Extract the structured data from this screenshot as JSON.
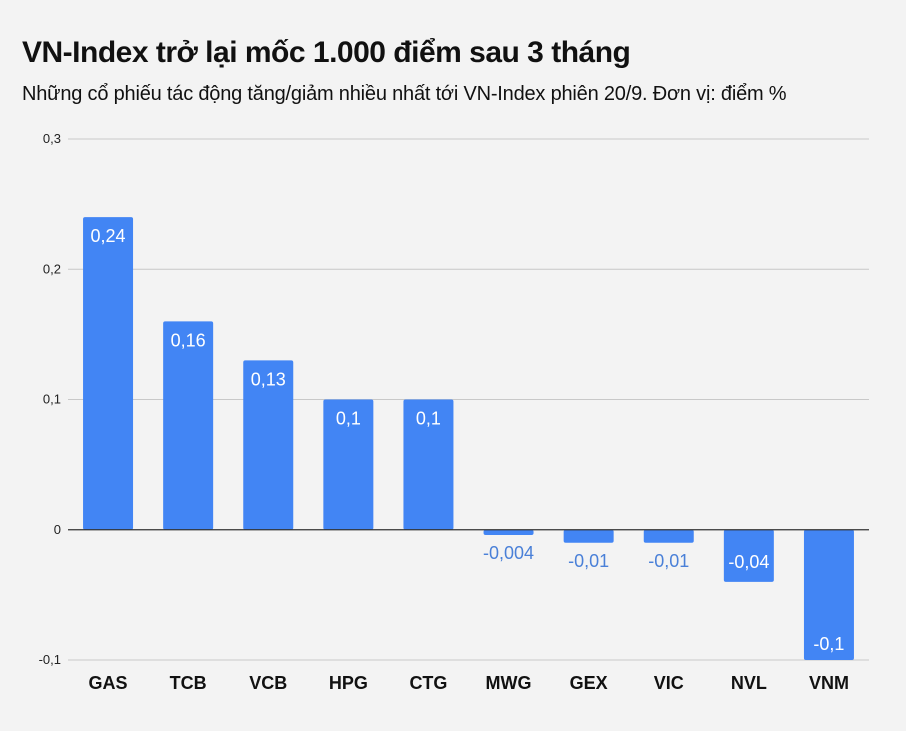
{
  "header": {
    "title": "VN-Index trở lại mốc 1.000 điểm sau 3 tháng",
    "subtitle": "Những cổ phiếu tác động tăng/giảm nhiều nhất tới VN-Index phiên 20/9. Đơn vị: điểm %"
  },
  "colors": {
    "bar": "#4285f4",
    "background": "#f3f3f3",
    "gridline": "#c8c8c8",
    "zero_line": "#333333",
    "label_inside": "#ffffff",
    "label_outside": "#4a80d8"
  },
  "chart_data": {
    "type": "bar",
    "title": "VN-Index trở lại mốc 1.000 điểm sau 3 tháng",
    "subtitle": "Những cổ phiếu tác động tăng/giảm nhiều nhất tới VN-Index phiên 20/9. Đơn vị: điểm %",
    "categories": [
      "GAS",
      "TCB",
      "VCB",
      "HPG",
      "CTG",
      "MWG",
      "GEX",
      "VIC",
      "NVL",
      "VNM"
    ],
    "values": [
      0.24,
      0.16,
      0.13,
      0.1,
      0.1,
      -0.004,
      -0.01,
      -0.01,
      -0.04,
      -0.1
    ],
    "value_labels": [
      "0,24",
      "0,16",
      "0,13",
      "0,1",
      "0,1",
      "-0,004",
      "-0,01",
      "-0,01",
      "-0,04",
      "-0,1"
    ],
    "xlabel": "",
    "ylabel": "",
    "ylim": [
      -0.1,
      0.3
    ],
    "yticks": [
      -0.1,
      0,
      0.1,
      0.2,
      0.3
    ],
    "ytick_labels": [
      "-0,1",
      "0",
      "0,1",
      "0,2",
      "0,3"
    ],
    "grid": true,
    "legend": "none"
  }
}
